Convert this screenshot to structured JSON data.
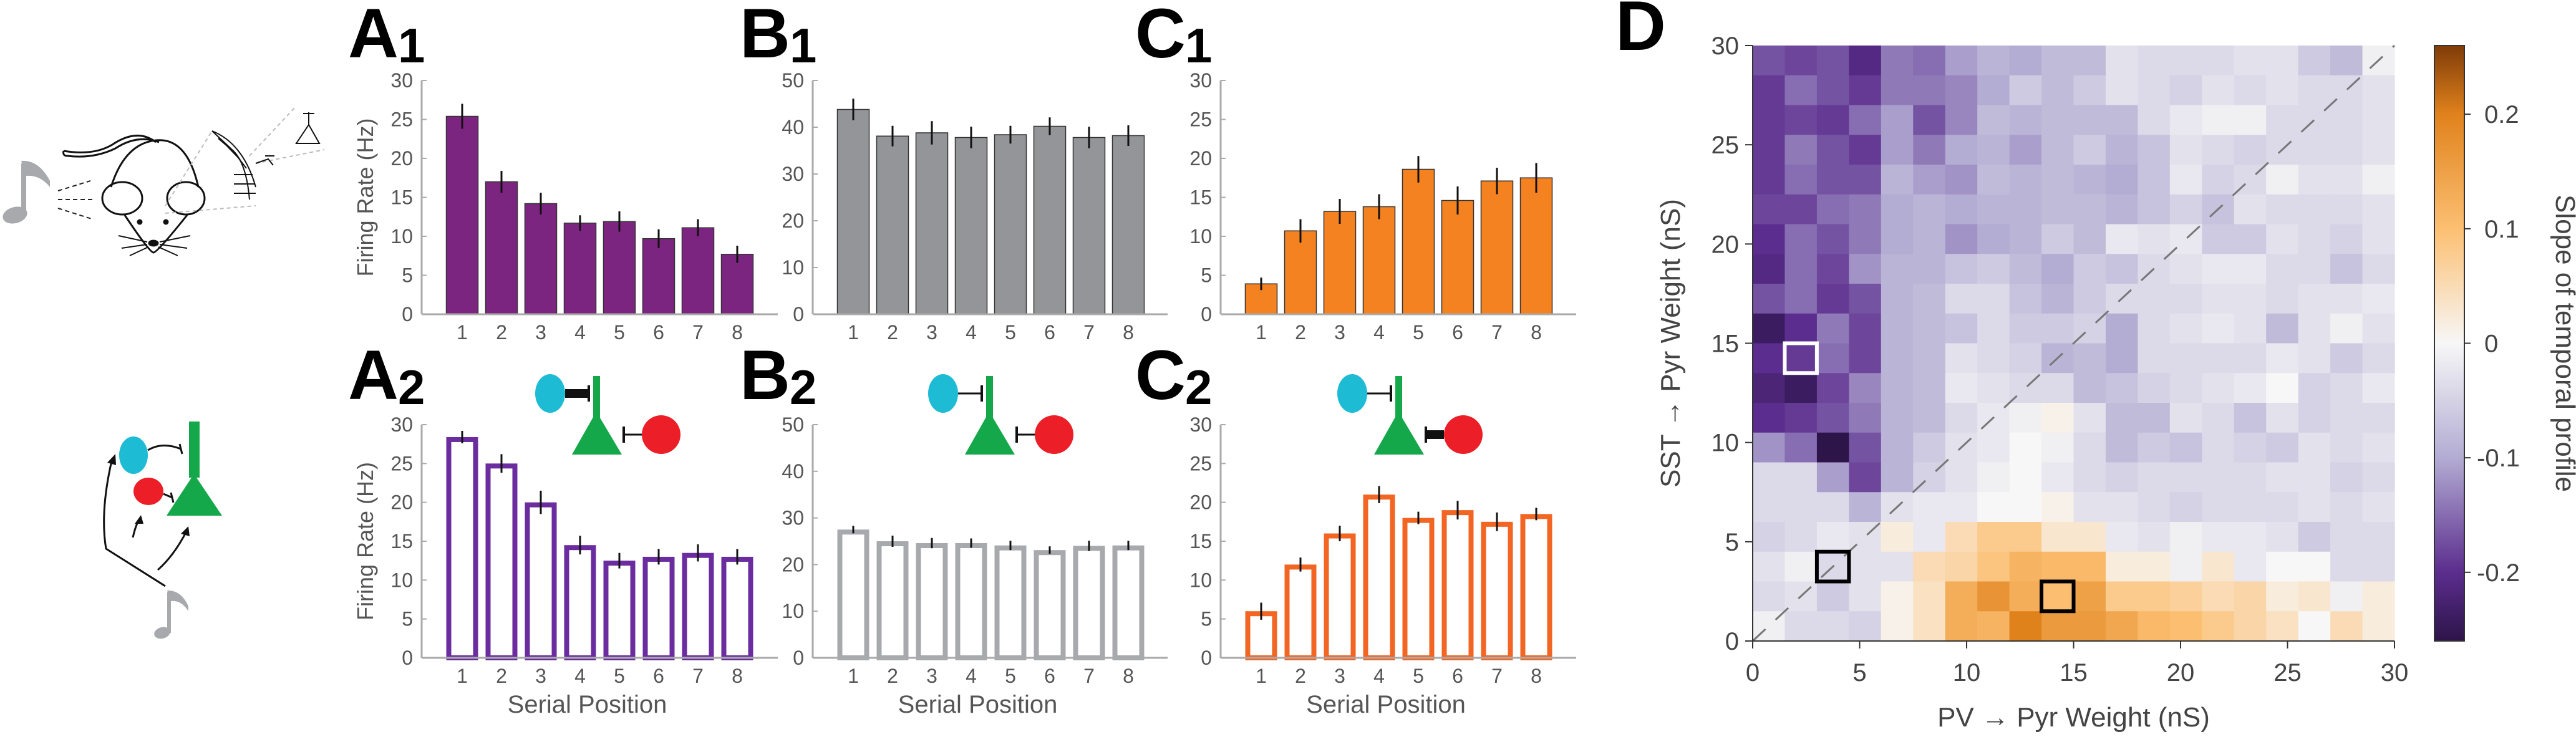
{
  "colors": {
    "purple_fill": "#7b2580",
    "purple_outline": "#6a2c9e",
    "grey_fill": "#939598",
    "grey_outline": "#a7a9ac",
    "orange_fill": "#f58220",
    "orange_outline": "#f26522",
    "pv_cell": "#1ebcd4",
    "sst_cell": "#ec1f28",
    "pyr_cell": "#15a84a",
    "note": "#a7a9ac"
  },
  "panels": {
    "A1": {
      "letter": "A",
      "sub": "1"
    },
    "B1": {
      "letter": "B",
      "sub": "1"
    },
    "C1": {
      "letter": "C",
      "sub": "1"
    },
    "A2": {
      "letter": "A",
      "sub": "2"
    },
    "B2": {
      "letter": "B",
      "sub": "2"
    },
    "C2": {
      "letter": "C",
      "sub": "2"
    },
    "D": {
      "letter": "D"
    }
  },
  "chart_data": [
    {
      "id": "A1",
      "type": "bar",
      "style": "filled",
      "color": "#7b2580",
      "categories": [
        "1",
        "2",
        "3",
        "4",
        "5",
        "6",
        "7",
        "8"
      ],
      "values": [
        25.4,
        17.0,
        14.2,
        11.7,
        11.9,
        9.7,
        11.1,
        7.7
      ],
      "errors": [
        1.6,
        1.4,
        1.4,
        1.0,
        1.3,
        1.2,
        1.1,
        1.1
      ],
      "ylabel": "Firing Rate (Hz)",
      "xlabel": "",
      "ylim": [
        0,
        30
      ],
      "yticks": [
        0,
        5,
        10,
        15,
        20,
        25,
        30
      ]
    },
    {
      "id": "B1",
      "type": "bar",
      "style": "filled",
      "color": "#939598",
      "categories": [
        "1",
        "2",
        "3",
        "4",
        "5",
        "6",
        "7",
        "8"
      ],
      "values": [
        43.8,
        38.1,
        38.8,
        37.8,
        38.4,
        40.2,
        37.8,
        38.2
      ],
      "errors": [
        2.3,
        2.2,
        2.5,
        2.3,
        1.9,
        1.9,
        2.3,
        2.2
      ],
      "ylabel": "",
      "xlabel": "",
      "ylim": [
        0,
        50
      ],
      "yticks": [
        0,
        10,
        20,
        30,
        40,
        50
      ]
    },
    {
      "id": "C1",
      "type": "bar",
      "style": "filled",
      "color": "#f58220",
      "categories": [
        "1",
        "2",
        "3",
        "4",
        "5",
        "6",
        "7",
        "8"
      ],
      "values": [
        3.9,
        10.7,
        13.2,
        13.8,
        18.6,
        14.6,
        17.1,
        17.5
      ],
      "errors": [
        0.8,
        1.5,
        1.6,
        1.6,
        1.7,
        1.8,
        1.7,
        1.9
      ],
      "ylabel": "",
      "xlabel": "",
      "ylim": [
        0,
        30
      ],
      "yticks": [
        0,
        5,
        10,
        15,
        20,
        25,
        30
      ]
    },
    {
      "id": "A2",
      "type": "bar",
      "style": "outline",
      "color": "#6a2c9e",
      "categories": [
        "1",
        "2",
        "3",
        "4",
        "5",
        "6",
        "7",
        "8"
      ],
      "values": [
        28.4,
        25.0,
        20.0,
        14.5,
        12.5,
        13.0,
        13.5,
        13.0
      ],
      "errors": [
        0.8,
        1.2,
        1.5,
        1.2,
        1.0,
        1.0,
        1.1,
        1.0
      ],
      "ylabel": "Firing Rate (Hz)",
      "xlabel": "Serial Position",
      "ylim": [
        0,
        30
      ],
      "yticks": [
        0,
        5,
        10,
        15,
        20,
        25,
        30
      ]
    },
    {
      "id": "B2",
      "type": "bar",
      "style": "outline",
      "color": "#a7a9ac",
      "categories": [
        "1",
        "2",
        "3",
        "4",
        "5",
        "6",
        "7",
        "8"
      ],
      "values": [
        27.5,
        25.0,
        24.6,
        24.6,
        24.1,
        23.1,
        24.0,
        24.1
      ],
      "errors": [
        0.8,
        1.2,
        1.1,
        1.0,
        1.0,
        0.8,
        1.1,
        1.0
      ],
      "ylabel": "",
      "xlabel": "Serial Position",
      "ylim": [
        0,
        50
      ],
      "yticks": [
        0,
        10,
        20,
        30,
        40,
        50
      ]
    },
    {
      "id": "C2",
      "type": "bar",
      "style": "outline",
      "color": "#f26522",
      "categories": [
        "1",
        "2",
        "3",
        "4",
        "5",
        "6",
        "7",
        "8"
      ],
      "values": [
        6.0,
        12.0,
        16.0,
        21.0,
        18.0,
        19.0,
        17.5,
        18.5
      ],
      "errors": [
        1.1,
        0.9,
        1.0,
        1.1,
        0.8,
        1.2,
        1.2,
        0.8
      ],
      "ylabel": "",
      "xlabel": "Serial Position",
      "ylim": [
        0,
        30
      ],
      "yticks": [
        0,
        5,
        10,
        15,
        20,
        25,
        30
      ]
    },
    {
      "id": "D",
      "type": "heatmap",
      "xlabel": "PV → Pyr Weight (nS)",
      "ylabel": "SST → Pyr Weight (nS)",
      "colorbar_label": "Slope of temporal profile",
      "xlim": [
        0,
        30
      ],
      "ylim": [
        0,
        30
      ],
      "xticks": [
        0,
        5,
        10,
        15,
        20,
        25,
        30
      ],
      "yticks": [
        0,
        5,
        10,
        15,
        20,
        25,
        30
      ],
      "clim": [
        -0.26,
        0.26
      ],
      "cbar_ticks": [
        -0.2,
        -0.1,
        0,
        0.1,
        0.2
      ],
      "cbar_tick_labels": [
        "-0.2",
        "-0.1",
        "0",
        "0.1",
        "0.2"
      ],
      "cell_size": 1.5,
      "colormap": [
        [
          -0.26,
          "#2d1449"
        ],
        [
          -0.2,
          "#5b2d8e"
        ],
        [
          -0.1,
          "#b3acd3"
        ],
        [
          0,
          "#f7f7f7"
        ],
        [
          0.1,
          "#fcbf72"
        ],
        [
          0.2,
          "#e0821c"
        ],
        [
          0.26,
          "#7f3b08"
        ]
      ],
      "diagonal": "dashed y=x",
      "highlight_cells": [
        {
          "x": 2.25,
          "y": 14.25,
          "color": "#ffffff"
        },
        {
          "x": 3.75,
          "y": 3.75,
          "color": "#000000"
        },
        {
          "x": 14.25,
          "y": 2.25,
          "color": "#000000"
        }
      ],
      "rows_top_to_bottom": [
        [
          -0.17,
          -0.18,
          -0.17,
          -0.21,
          -0.14,
          -0.15,
          -0.11,
          -0.09,
          -0.1,
          -0.08,
          -0.08,
          -0.03,
          -0.04,
          -0.04,
          -0.04,
          -0.03,
          -0.03,
          -0.06,
          -0.08,
          -0.01
        ],
        [
          -0.19,
          -0.15,
          -0.17,
          -0.19,
          -0.14,
          -0.14,
          -0.13,
          -0.1,
          -0.06,
          -0.08,
          -0.06,
          -0.03,
          -0.04,
          -0.05,
          -0.03,
          -0.04,
          -0.03,
          -0.04,
          -0.04,
          -0.03
        ],
        [
          -0.19,
          -0.18,
          -0.19,
          -0.15,
          -0.11,
          -0.17,
          -0.13,
          -0.08,
          -0.09,
          -0.08,
          -0.08,
          -0.08,
          -0.04,
          -0.02,
          -0.01,
          -0.01,
          -0.04,
          -0.04,
          -0.04,
          -0.03
        ],
        [
          -0.19,
          -0.14,
          -0.17,
          -0.19,
          -0.11,
          -0.14,
          -0.1,
          -0.09,
          -0.11,
          -0.08,
          -0.06,
          -0.09,
          -0.07,
          -0.03,
          -0.04,
          -0.05,
          -0.04,
          -0.04,
          -0.04,
          -0.03
        ],
        [
          -0.19,
          -0.15,
          -0.17,
          -0.17,
          -0.09,
          -0.11,
          -0.12,
          -0.08,
          -0.09,
          -0.08,
          -0.09,
          -0.1,
          -0.07,
          -0.02,
          -0.05,
          -0.04,
          -0.01,
          -0.03,
          -0.03,
          -0.01
        ],
        [
          -0.18,
          -0.18,
          -0.15,
          -0.14,
          -0.1,
          -0.09,
          -0.1,
          -0.09,
          -0.09,
          -0.08,
          -0.08,
          -0.09,
          -0.07,
          -0.05,
          -0.07,
          -0.03,
          -0.04,
          -0.04,
          -0.04,
          -0.03
        ],
        [
          -0.2,
          -0.15,
          -0.17,
          -0.14,
          -0.1,
          -0.09,
          -0.12,
          -0.1,
          -0.09,
          -0.06,
          -0.08,
          -0.02,
          -0.03,
          -0.02,
          -0.06,
          -0.06,
          -0.03,
          -0.04,
          -0.05,
          -0.03
        ],
        [
          -0.21,
          -0.15,
          -0.18,
          -0.12,
          -0.09,
          -0.09,
          -0.07,
          -0.06,
          -0.08,
          -0.1,
          -0.06,
          -0.07,
          -0.04,
          -0.03,
          -0.02,
          -0.02,
          -0.04,
          -0.04,
          -0.07,
          -0.04
        ],
        [
          -0.17,
          -0.15,
          -0.19,
          -0.17,
          -0.09,
          -0.08,
          -0.04,
          -0.04,
          -0.07,
          -0.09,
          -0.06,
          -0.04,
          -0.04,
          -0.04,
          -0.03,
          -0.03,
          -0.04,
          -0.03,
          -0.03,
          -0.02
        ],
        [
          -0.24,
          -0.2,
          -0.14,
          -0.18,
          -0.09,
          -0.08,
          -0.07,
          -0.04,
          -0.06,
          -0.06,
          -0.05,
          -0.1,
          -0.04,
          -0.03,
          -0.02,
          -0.03,
          -0.08,
          -0.03,
          -0.01,
          -0.03
        ],
        [
          -0.2,
          -0.19,
          -0.15,
          -0.18,
          -0.09,
          -0.08,
          -0.03,
          -0.04,
          -0.05,
          -0.09,
          -0.08,
          -0.1,
          -0.04,
          -0.04,
          -0.04,
          -0.04,
          -0.02,
          -0.03,
          -0.06,
          -0.04
        ],
        [
          -0.22,
          -0.24,
          -0.18,
          -0.13,
          -0.09,
          -0.08,
          -0.02,
          -0.03,
          -0.04,
          -0.04,
          -0.08,
          -0.07,
          -0.05,
          -0.04,
          -0.03,
          -0.02,
          0.0,
          -0.05,
          -0.04,
          -0.02
        ],
        [
          -0.2,
          -0.19,
          -0.17,
          -0.14,
          -0.09,
          -0.08,
          -0.04,
          -0.02,
          -0.01,
          0.01,
          -0.03,
          -0.08,
          -0.08,
          -0.03,
          -0.04,
          -0.07,
          -0.03,
          -0.05,
          -0.04,
          -0.04
        ],
        [
          -0.12,
          -0.15,
          -0.26,
          -0.17,
          -0.09,
          -0.06,
          -0.03,
          -0.02,
          0.0,
          -0.01,
          -0.04,
          -0.08,
          -0.06,
          -0.07,
          -0.04,
          -0.05,
          -0.06,
          -0.03,
          -0.04,
          -0.03
        ],
        [
          -0.04,
          -0.04,
          -0.11,
          -0.18,
          -0.09,
          -0.05,
          -0.03,
          -0.01,
          0.0,
          -0.02,
          -0.04,
          -0.05,
          -0.04,
          -0.04,
          -0.04,
          -0.04,
          -0.03,
          -0.03,
          -0.05,
          -0.04
        ],
        [
          -0.04,
          -0.04,
          -0.04,
          -0.09,
          -0.03,
          -0.02,
          -0.02,
          0.0,
          0.0,
          0.01,
          -0.03,
          -0.03,
          -0.04,
          -0.05,
          -0.04,
          -0.04,
          -0.04,
          -0.03,
          -0.04,
          -0.03
        ],
        [
          -0.05,
          -0.04,
          -0.02,
          -0.03,
          0.02,
          -0.02,
          0.05,
          0.08,
          0.08,
          0.03,
          0.03,
          -0.02,
          -0.03,
          -0.01,
          -0.02,
          -0.02,
          -0.03,
          -0.06,
          -0.04,
          -0.04
        ],
        [
          -0.03,
          -0.01,
          -0.04,
          -0.03,
          -0.03,
          0.05,
          0.06,
          0.09,
          0.12,
          0.11,
          0.11,
          0.02,
          0.02,
          -0.01,
          0.03,
          -0.02,
          0.0,
          0.0,
          -0.04,
          -0.04
        ],
        [
          -0.04,
          -0.03,
          -0.06,
          -0.03,
          0.01,
          0.04,
          0.13,
          0.17,
          0.13,
          0.1,
          0.15,
          0.08,
          0.08,
          0.07,
          0.05,
          0.06,
          0.02,
          0.03,
          -0.01,
          0.02
        ],
        [
          -0.01,
          -0.04,
          -0.04,
          -0.05,
          0.01,
          0.04,
          0.13,
          0.12,
          0.2,
          0.16,
          0.16,
          0.14,
          0.11,
          0.1,
          0.08,
          0.06,
          0.04,
          0.0,
          0.05,
          0.02
        ]
      ]
    }
  ]
}
